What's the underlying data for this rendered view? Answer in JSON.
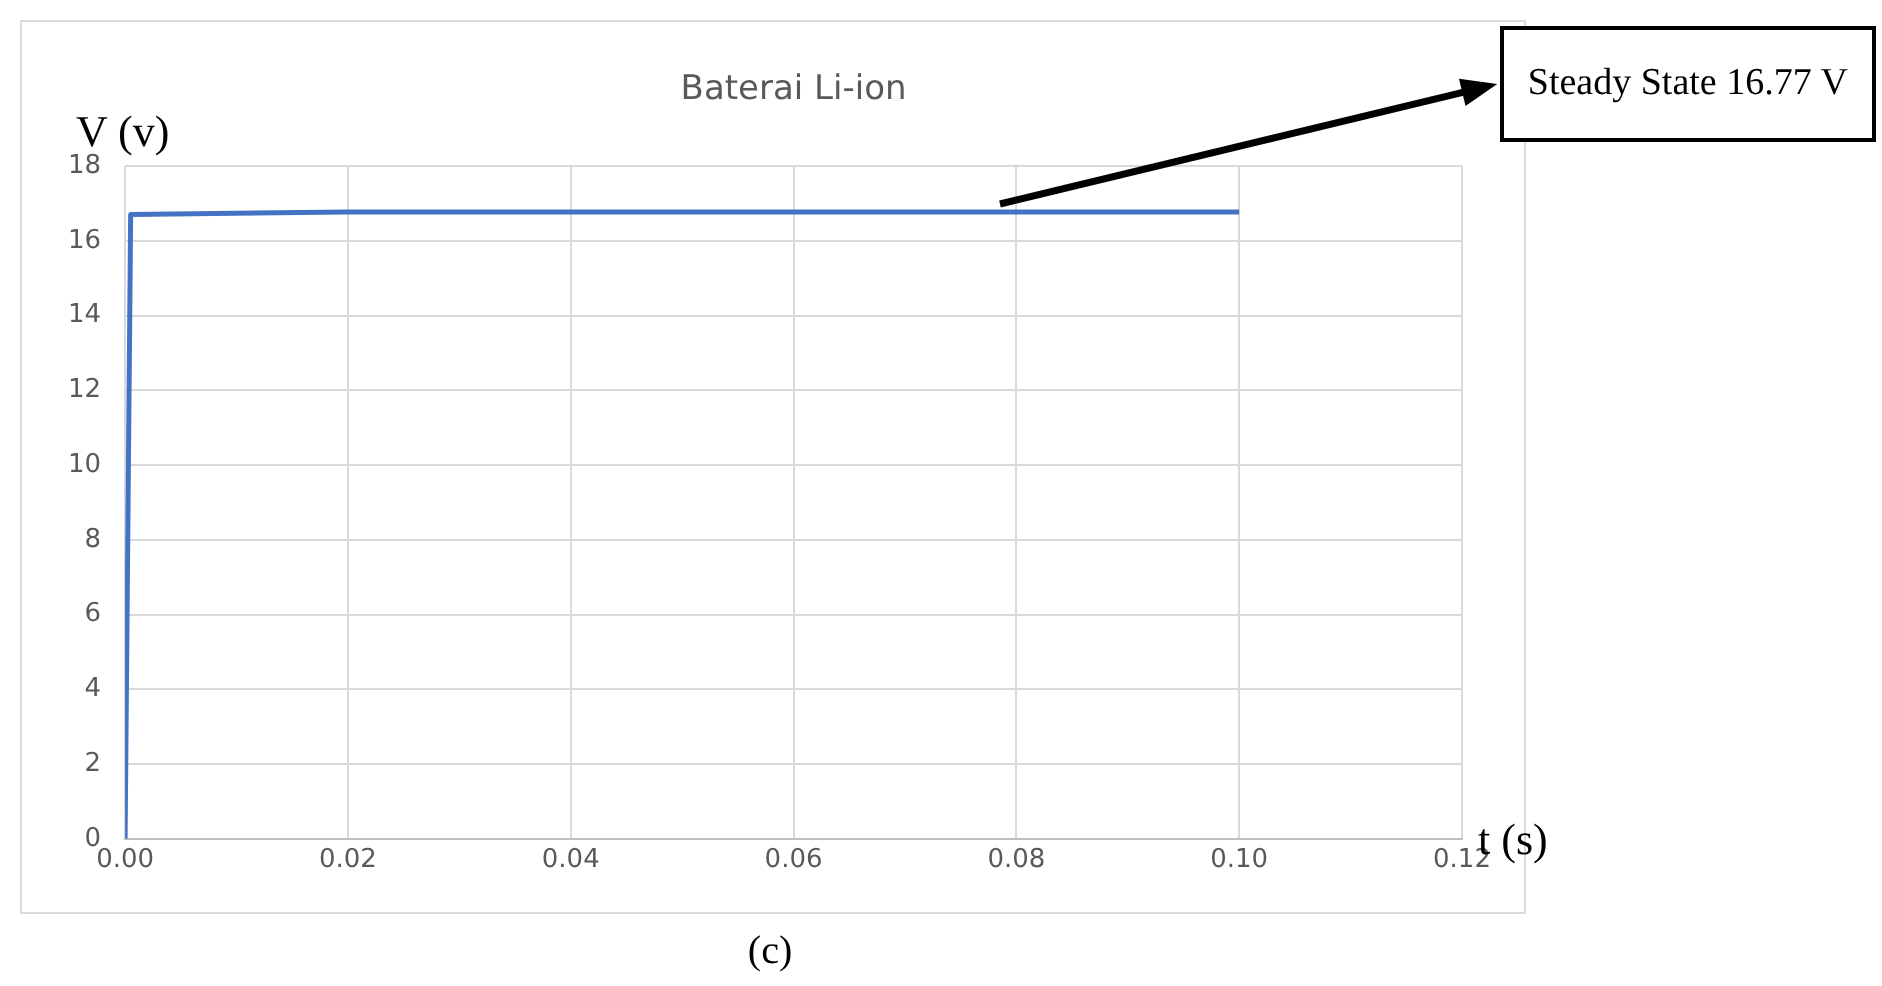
{
  "chart_data": {
    "type": "line",
    "title": "Baterai Li-ion",
    "xlabel": "t (s)",
    "ylabel": "V (v)",
    "series": [
      {
        "color": "#4472c4",
        "x": [
          0,
          0.0005,
          0.02,
          0.1
        ],
        "values": [
          0,
          16.7,
          16.77,
          16.77
        ]
      }
    ],
    "xlim": [
      0,
      0.12
    ],
    "xticks": [
      {
        "value": 0,
        "label": "0.00"
      },
      {
        "value": 0.02,
        "label": "0.02"
      },
      {
        "value": 0.04,
        "label": "0.04"
      },
      {
        "value": 0.06,
        "label": "0.06"
      },
      {
        "value": 0.08,
        "label": "0.08"
      },
      {
        "value": 0.1,
        "label": "0.10"
      },
      {
        "value": 0.12,
        "label": "0.12"
      }
    ],
    "ylim": [
      0,
      18
    ],
    "yticks": [
      0,
      2,
      4,
      6,
      8,
      10,
      12,
      14,
      16,
      18
    ],
    "grid": true,
    "legend": false,
    "marker": "none",
    "line_style": "solid",
    "annotations": [
      "Steady State 16.77 V",
      "(c)"
    ]
  }
}
